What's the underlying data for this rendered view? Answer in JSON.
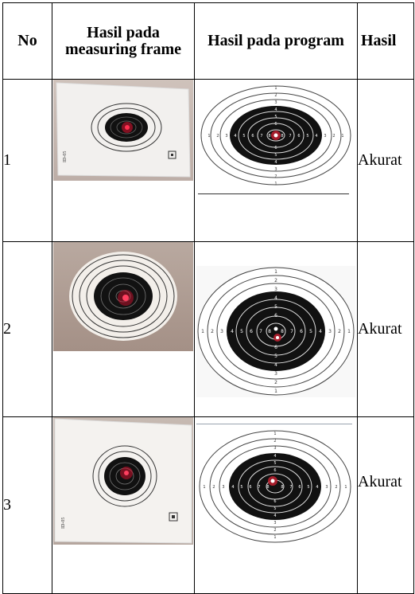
{
  "headers": {
    "no": "No",
    "frame": "Hasil pada measuring frame",
    "program": "Hasil pada program",
    "result": "Hasil"
  },
  "rows": [
    {
      "no": "1",
      "result": "Akurat"
    },
    {
      "no": "2",
      "result": "Akurat"
    },
    {
      "no": "3",
      "result": "Akurat"
    }
  ],
  "target_numbers": [
    "1",
    "2",
    "3",
    "4",
    "5",
    "6",
    "7",
    "8",
    "9",
    "8",
    "7",
    "6",
    "5",
    "4",
    "3",
    "2",
    "1"
  ],
  "colors": {
    "target_black": "#111111",
    "laser_red": "#e01030",
    "paper": "#f6f4f1",
    "wall": "#bfb0a8"
  }
}
